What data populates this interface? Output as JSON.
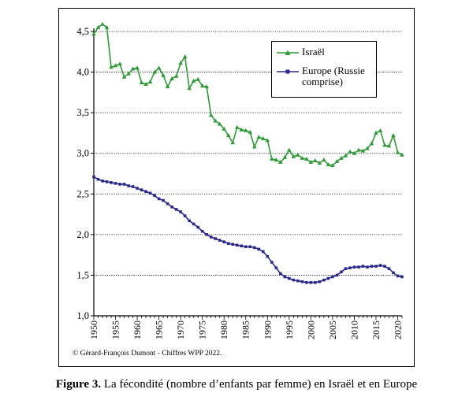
{
  "chart_data": {
    "type": "line",
    "title": "",
    "xlabel": "",
    "ylabel": "",
    "xlim": [
      1950,
      2021
    ],
    "ylim": [
      1.0,
      4.7
    ],
    "y_ticks": [
      1.0,
      1.5,
      2.0,
      2.5,
      3.0,
      3.5,
      4.0,
      4.5
    ],
    "y_tick_labels": [
      "1,0",
      "1,5",
      "2,0",
      "2,5",
      "3,0",
      "3,5",
      "4,0",
      "4,5"
    ],
    "x_tick_labels": [
      "1950",
      "1955",
      "1960",
      "1965",
      "1970",
      "1975",
      "1980",
      "1985",
      "1990",
      "1995",
      "2000",
      "2005",
      "2010",
      "2015",
      "2020"
    ],
    "grid": "horizontal dotted",
    "legend_position": "top-right",
    "x": [
      1950,
      1951,
      1952,
      1953,
      1954,
      1955,
      1956,
      1957,
      1958,
      1959,
      1960,
      1961,
      1962,
      1963,
      1964,
      1965,
      1966,
      1967,
      1968,
      1969,
      1970,
      1971,
      1972,
      1973,
      1974,
      1975,
      1976,
      1977,
      1978,
      1979,
      1980,
      1981,
      1982,
      1983,
      1984,
      1985,
      1986,
      1987,
      1988,
      1989,
      1990,
      1991,
      1992,
      1993,
      1994,
      1995,
      1996,
      1997,
      1998,
      1999,
      2000,
      2001,
      2002,
      2003,
      2004,
      2005,
      2006,
      2007,
      2008,
      2009,
      2010,
      2011,
      2012,
      2013,
      2014,
      2015,
      2016,
      2017,
      2018,
      2019,
      2020,
      2021
    ],
    "series": [
      {
        "name": "Israël",
        "color": "#2f9a36",
        "marker": "triangle",
        "values": [
          4.47,
          4.55,
          4.59,
          4.55,
          4.06,
          4.08,
          4.1,
          3.94,
          3.98,
          4.04,
          4.05,
          3.87,
          3.85,
          3.88,
          4.0,
          4.05,
          3.96,
          3.82,
          3.92,
          3.95,
          4.11,
          4.19,
          3.8,
          3.89,
          3.91,
          3.83,
          3.82,
          3.47,
          3.4,
          3.36,
          3.3,
          3.22,
          3.13,
          3.32,
          3.29,
          3.28,
          3.26,
          3.08,
          3.2,
          3.18,
          3.16,
          2.93,
          2.92,
          2.89,
          2.95,
          3.04,
          2.96,
          2.98,
          2.94,
          2.93,
          2.89,
          2.91,
          2.88,
          2.92,
          2.86,
          2.85,
          2.9,
          2.94,
          2.97,
          3.02,
          3.0,
          3.04,
          3.03,
          3.06,
          3.12,
          3.25,
          3.28,
          3.1,
          3.09,
          3.22,
          3.01,
          2.98
        ]
      },
      {
        "name": "Europe (Russie\ncomprise)",
        "color": "#2a2a8a",
        "marker": "square",
        "values": [
          2.71,
          2.68,
          2.66,
          2.65,
          2.64,
          2.63,
          2.62,
          2.62,
          2.6,
          2.59,
          2.57,
          2.55,
          2.53,
          2.51,
          2.48,
          2.44,
          2.42,
          2.38,
          2.34,
          2.31,
          2.28,
          2.23,
          2.17,
          2.13,
          2.09,
          2.04,
          2.0,
          1.97,
          1.95,
          1.93,
          1.91,
          1.89,
          1.88,
          1.87,
          1.86,
          1.85,
          1.85,
          1.84,
          1.82,
          1.79,
          1.73,
          1.66,
          1.59,
          1.52,
          1.48,
          1.46,
          1.44,
          1.43,
          1.42,
          1.41,
          1.41,
          1.41,
          1.42,
          1.44,
          1.46,
          1.48,
          1.5,
          1.54,
          1.58,
          1.59,
          1.6,
          1.6,
          1.61,
          1.6,
          1.61,
          1.61,
          1.62,
          1.61,
          1.58,
          1.53,
          1.49,
          1.48
        ]
      }
    ]
  },
  "credit": "© Gérard-François Dumont - Chiffres WPP 2022.",
  "caption": {
    "label": "Figure 3.",
    "text": " La fécondité (nombre d’enfants par femme) en Israël et en Europe"
  }
}
